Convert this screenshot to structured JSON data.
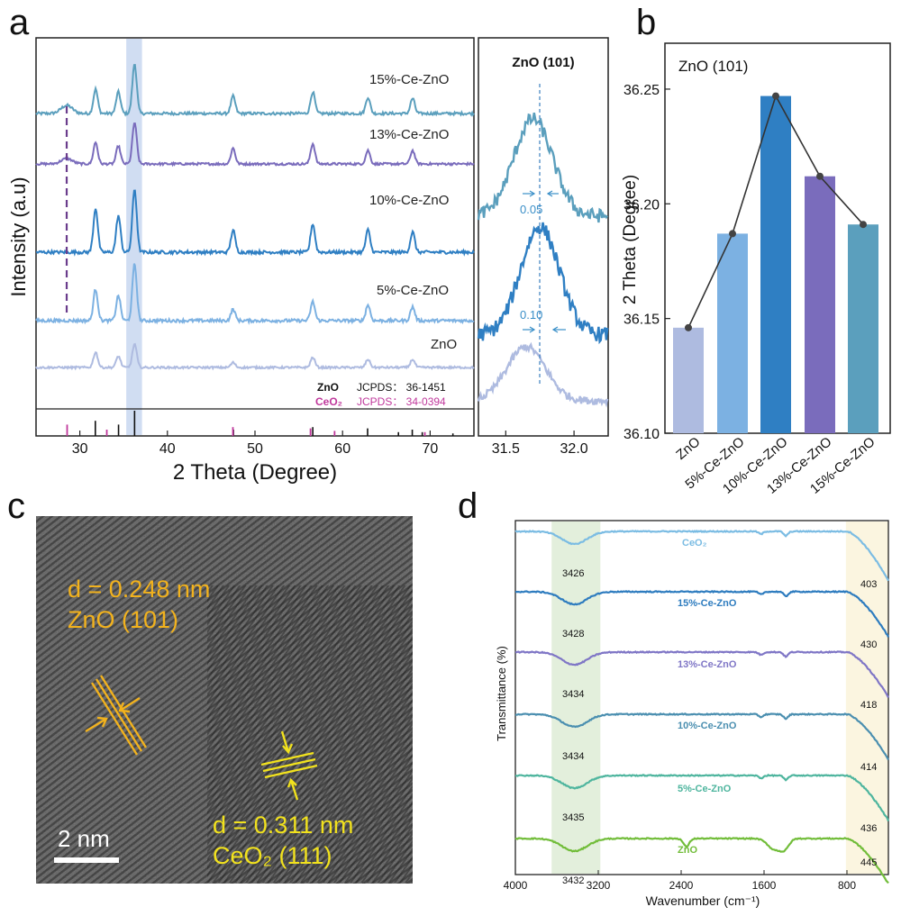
{
  "panel_labels": {
    "a": "a",
    "b": "b",
    "c": "c",
    "d": "d"
  },
  "colors": {
    "ZnO": "#aebbe0",
    "5%-Ce-ZnO": "#7cb1e2",
    "10%-Ce-ZnO": "#2f7fc3",
    "13%-Ce-ZnO": "#7a6cbc",
    "15%-Ce-ZnO": "#5b9fbd",
    "CeO2_ref": "#c0389c",
    "highlight": "#c8d7f0",
    "ftir_ZnO": "#72bd3a",
    "ftir_5": "#4eb59e",
    "ftir_10": "#4b8fb0",
    "ftir_13": "#7f76c6",
    "ftir_15": "#2e7cbf",
    "ftir_CeO2": "#7bbce3",
    "band_green": "#e3efdc",
    "band_yellow": "#fbf5e0",
    "tem_text": "#f2b21d"
  },
  "chart_data": [
    {
      "id": "a-main",
      "type": "line",
      "xlabel": "2 Theta (Degree)",
      "ylabel": "Intensity (a.u)",
      "xlim": [
        25,
        75
      ],
      "xticks": [
        30,
        40,
        50,
        60,
        70
      ],
      "series": [
        {
          "name": "15%-Ce-ZnO",
          "peaks": [
            [
              28.5,
              0.15
            ],
            [
              31.8,
              0.45
            ],
            [
              34.4,
              0.4
            ],
            [
              36.25,
              0.92
            ],
            [
              47.5,
              0.32
            ],
            [
              56.6,
              0.4
            ],
            [
              62.9,
              0.3
            ],
            [
              68.0,
              0.28
            ]
          ]
        },
        {
          "name": "13%-Ce-ZnO",
          "peaks": [
            [
              28.5,
              0.12
            ],
            [
              31.8,
              0.48
            ],
            [
              34.4,
              0.4
            ],
            [
              36.25,
              0.92
            ],
            [
              47.5,
              0.35
            ],
            [
              56.6,
              0.45
            ],
            [
              62.9,
              0.3
            ],
            [
              68.0,
              0.3
            ]
          ]
        },
        {
          "name": "10%-Ce-ZnO",
          "peaks": [
            [
              31.8,
              0.7
            ],
            [
              34.4,
              0.58
            ],
            [
              36.25,
              1.0
            ],
            [
              47.5,
              0.35
            ],
            [
              56.6,
              0.45
            ],
            [
              62.9,
              0.35
            ],
            [
              68.0,
              0.32
            ]
          ]
        },
        {
          "name": "5%-Ce-ZnO",
          "peaks": [
            [
              31.8,
              0.5
            ],
            [
              34.4,
              0.4
            ],
            [
              36.25,
              0.9
            ],
            [
              47.5,
              0.18
            ],
            [
              56.6,
              0.3
            ],
            [
              62.9,
              0.25
            ],
            [
              68.0,
              0.22
            ]
          ]
        },
        {
          "name": "ZnO",
          "peaks": [
            [
              31.8,
              0.38
            ],
            [
              34.4,
              0.28
            ],
            [
              36.25,
              0.58
            ],
            [
              47.5,
              0.12
            ],
            [
              56.6,
              0.25
            ],
            [
              62.9,
              0.2
            ],
            [
              68.0,
              0.2
            ]
          ]
        }
      ],
      "ref_ZnO_label": "ZnO",
      "ref_ZnO_card": "JCPDS： 36-1451",
      "ref_ZnO_sticks": [
        [
          31.77,
          0.6
        ],
        [
          34.42,
          0.45
        ],
        [
          36.25,
          1.0
        ],
        [
          47.54,
          0.25
        ],
        [
          56.6,
          0.35
        ],
        [
          62.86,
          0.3
        ],
        [
          66.38,
          0.15
        ],
        [
          67.96,
          0.25
        ],
        [
          69.1,
          0.15
        ],
        [
          72.6,
          0.1
        ]
      ],
      "ref_CeO2_label": "CeO₂",
      "ref_CeO2_card": "JCPDS： 34-0394",
      "ref_CeO2_sticks": [
        [
          28.55,
          0.45
        ],
        [
          33.08,
          0.25
        ],
        [
          47.48,
          0.35
        ],
        [
          56.34,
          0.3
        ],
        [
          59.09,
          0.2
        ],
        [
          69.4,
          0.15
        ]
      ],
      "highlight_range": [
        35.3,
        37.1
      ],
      "marker_line_x": 28.5
    },
    {
      "id": "a-zoom",
      "type": "line",
      "title": "ZnO (101)",
      "xlim": [
        31.3,
        32.25
      ],
      "xticks": [
        31.5,
        32.0
      ],
      "xticklabels": [
        "31.5",
        "32.0"
      ],
      "series": [
        {
          "name": "15%-Ce-ZnO",
          "center": 31.7
        },
        {
          "name": "10%-Ce-ZnO",
          "center": 31.75
        },
        {
          "name": "ZnO",
          "center": 31.65
        }
      ],
      "annotations": [
        "0.05",
        "0.10"
      ]
    },
    {
      "id": "b",
      "type": "bar",
      "title": "ZnO (101)",
      "ylabel": "2 Theta (Degree)",
      "categories": [
        "ZnO",
        "5%-Ce-ZnO",
        "10%-Ce-ZnO",
        "13%-Ce-ZnO",
        "15%-Ce-ZnO"
      ],
      "values": [
        36.146,
        36.187,
        36.247,
        36.212,
        36.191
      ],
      "ylim": [
        36.1,
        36.27
      ],
      "yticks": [
        36.1,
        36.15,
        36.2,
        36.25
      ],
      "yticklabels": [
        "36.10",
        "36.15",
        "36.20",
        "36.25"
      ]
    },
    {
      "id": "d",
      "type": "line",
      "xlabel": "Wavenumber (cm⁻¹)",
      "ylabel": "Transmittance (%)",
      "xlim": [
        4000,
        400
      ],
      "xticks": [
        4000,
        3200,
        2400,
        1600,
        800
      ],
      "series": [
        {
          "name": "CeO₂",
          "oh_peak": "3426",
          "low_peak": "403"
        },
        {
          "name": "15%-Ce-ZnO",
          "oh_peak": "3428",
          "low_peak": "430"
        },
        {
          "name": "13%-Ce-ZnO",
          "oh_peak": "3434",
          "low_peak": "418"
        },
        {
          "name": "10%-Ce-ZnO",
          "oh_peak": "3434",
          "low_peak": "414"
        },
        {
          "name": "5%-Ce-ZnO",
          "oh_peak": "3435",
          "low_peak": "436"
        },
        {
          "name": "ZnO",
          "oh_peak": "3432",
          "low_peak": "445"
        }
      ],
      "bands": [
        [
          3650,
          3180
        ],
        [
          810,
          400
        ]
      ]
    }
  ],
  "tem": {
    "zno_d": "d = 0.248 nm",
    "zno_plane": "ZnO (101)",
    "ceo2_d": "d = 0.311 nm",
    "ceo2_plane": "CeO₂ (111)",
    "scale_bar": "2 nm"
  }
}
